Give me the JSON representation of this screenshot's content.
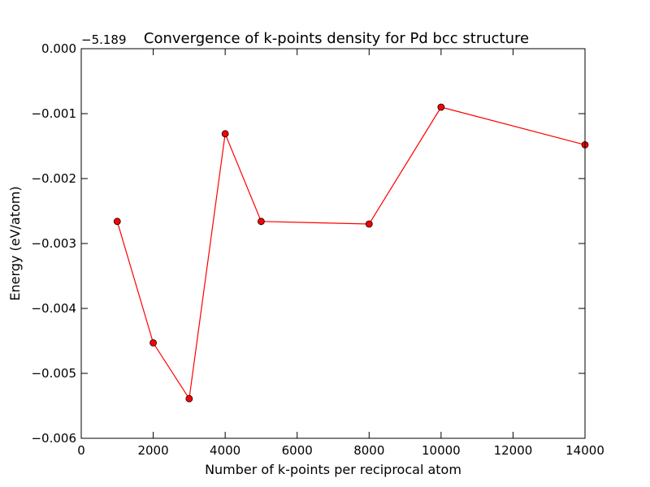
{
  "chart_data": {
    "type": "line",
    "title": "Convergence of k-points density for Pd bcc structure",
    "xlabel": "Number of k-points per reciprocal atom",
    "ylabel": "Energy (eV/atom)",
    "y_offset_label": "−5.189",
    "xlim": [
      0,
      14000
    ],
    "ylim": [
      -0.006,
      0.0
    ],
    "x_ticks": [
      0,
      2000,
      4000,
      6000,
      8000,
      10000,
      12000,
      14000
    ],
    "x_tick_labels": [
      "0",
      "2000",
      "4000",
      "6000",
      "8000",
      "10000",
      "12000",
      "14000"
    ],
    "y_ticks": [
      0.0,
      -0.001,
      -0.002,
      -0.003,
      -0.004,
      -0.005,
      -0.006
    ],
    "y_tick_labels": [
      "0.000",
      "−0.001",
      "−0.002",
      "−0.003",
      "−0.004",
      "−0.005",
      "−0.006"
    ],
    "grid": false,
    "series": [
      {
        "color": "#ff0000",
        "marker": "circle",
        "x": [
          1000,
          2000,
          3000,
          4000,
          5000,
          8000,
          10000,
          14000
        ],
        "y": [
          -0.00266,
          -0.00453,
          -0.00539,
          -0.00131,
          -0.00266,
          -0.0027,
          -0.0009,
          -0.00148
        ]
      }
    ]
  }
}
